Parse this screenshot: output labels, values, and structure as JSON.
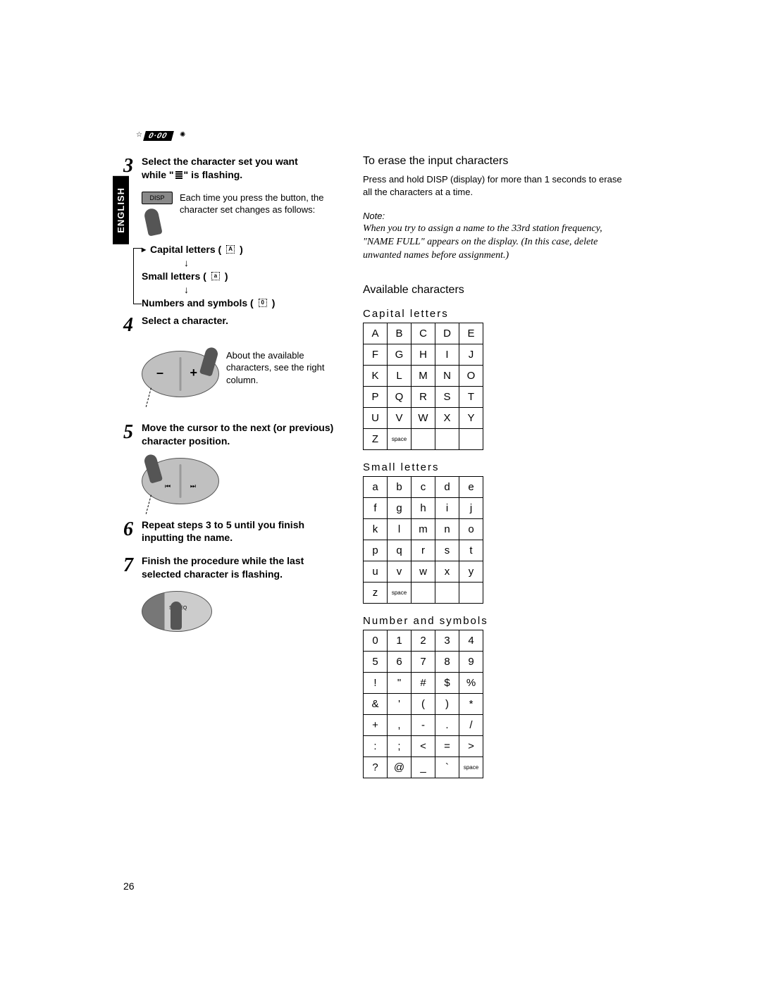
{
  "header_label": "0·00",
  "language_tab": "ENGLISH",
  "page_number": "26",
  "left": {
    "step3": {
      "title_a": "Select the character set you want",
      "title_b": "while \"",
      "title_c": "\" is flashing.",
      "sub": "Each time you press the button, the character set changes as follows:",
      "disp_label": "DISP",
      "line1": "Capital letters (",
      "line1b": ")",
      "line2": "Small letters (",
      "line2b": ")",
      "line3": "Numbers and symbols (",
      "line3b": ")"
    },
    "step4": {
      "title": "Select a character.",
      "sub": "About the available characters, see the right column."
    },
    "step5": {
      "title": "Move the cursor to the next (or previous) character position."
    },
    "step6": {
      "title": "Repeat steps 3 to 5 until you finish inputting the name."
    },
    "step7": {
      "title": "Finish the procedure while the last selected character is flashing."
    }
  },
  "right": {
    "erase_heading": "To erase the input characters",
    "erase_body": "Press and hold DISP (display) for more than 1 seconds to erase all the characters at a time.",
    "note_label": "Note:",
    "note_body": "When you try to assign a name to the 33rd station frequency, \"NAME FULL\" appears on the display. (In this case, delete unwanted names before assignment.)",
    "available_heading": "Available characters",
    "tables": {
      "capital": {
        "title": "Capital letters",
        "rows": [
          [
            "A",
            "B",
            "C",
            "D",
            "E"
          ],
          [
            "F",
            "G",
            "H",
            "I",
            "J"
          ],
          [
            "K",
            "L",
            "M",
            "N",
            "O"
          ],
          [
            "P",
            "Q",
            "R",
            "S",
            "T"
          ],
          [
            "U",
            "V",
            "W",
            "X",
            "Y"
          ],
          [
            "Z",
            "space",
            "",
            "",
            ""
          ]
        ]
      },
      "small": {
        "title": "Small letters",
        "rows": [
          [
            "a",
            "b",
            "c",
            "d",
            "e"
          ],
          [
            "f",
            "g",
            "h",
            "i",
            "j"
          ],
          [
            "k",
            "l",
            "m",
            "n",
            "o"
          ],
          [
            "p",
            "q",
            "r",
            "s",
            "t"
          ],
          [
            "u",
            "v",
            "w",
            "x",
            "y"
          ],
          [
            "z",
            "space",
            "",
            "",
            ""
          ]
        ]
      },
      "numsym": {
        "title": "Number and symbols",
        "rows": [
          [
            "0",
            "1",
            "2",
            "3",
            "4"
          ],
          [
            "5",
            "6",
            "7",
            "8",
            "9"
          ],
          [
            "!",
            "\"",
            "#",
            "$",
            "%"
          ],
          [
            "&",
            "'",
            "(",
            ")",
            "*"
          ],
          [
            "+",
            ",",
            "-",
            ".",
            "/"
          ],
          [
            ":",
            ";",
            "<",
            "=",
            ">"
          ],
          [
            "?",
            "@",
            "_",
            "`",
            "space"
          ]
        ]
      }
    }
  }
}
